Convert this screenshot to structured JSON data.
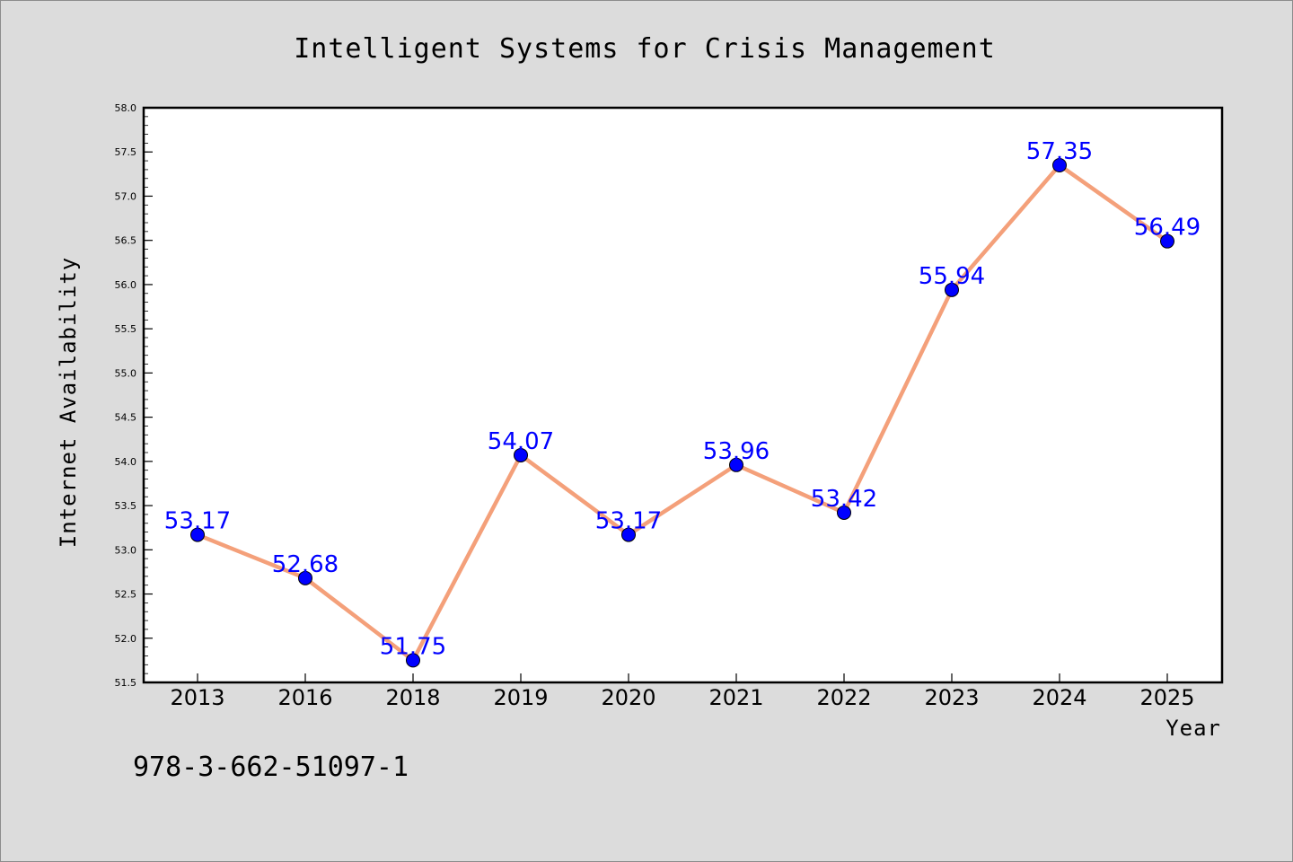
{
  "chart_data": {
    "type": "line",
    "title": "Intelligent Systems for Crisis Management",
    "xlabel": "Year",
    "ylabel": "Internet Availability",
    "categories": [
      "2013",
      "2016",
      "2018",
      "2019",
      "2020",
      "2021",
      "2022",
      "2023",
      "2024",
      "2025"
    ],
    "values": [
      53.17,
      52.68,
      51.75,
      54.07,
      53.17,
      53.96,
      53.42,
      55.94,
      57.35,
      56.49
    ],
    "value_labels": [
      "53.17",
      "52.68",
      "51.75",
      "54.07",
      "53.17",
      "53.96",
      "53.42",
      "55.94",
      "57.35",
      "56.49"
    ],
    "ylim": [
      51.5,
      58.0
    ],
    "yticks": [
      "51.5",
      "52.0",
      "52.5",
      "53.0",
      "53.5",
      "54.0",
      "54.5",
      "55.0",
      "55.5",
      "56.0",
      "56.5",
      "57.0",
      "57.5",
      "58.0"
    ],
    "grid": false,
    "line_color": "#f4a07a",
    "marker_color": "#0000ff",
    "label_color": "#0000ff"
  },
  "footer": {
    "isbn": "978-3-662-51097-1"
  }
}
